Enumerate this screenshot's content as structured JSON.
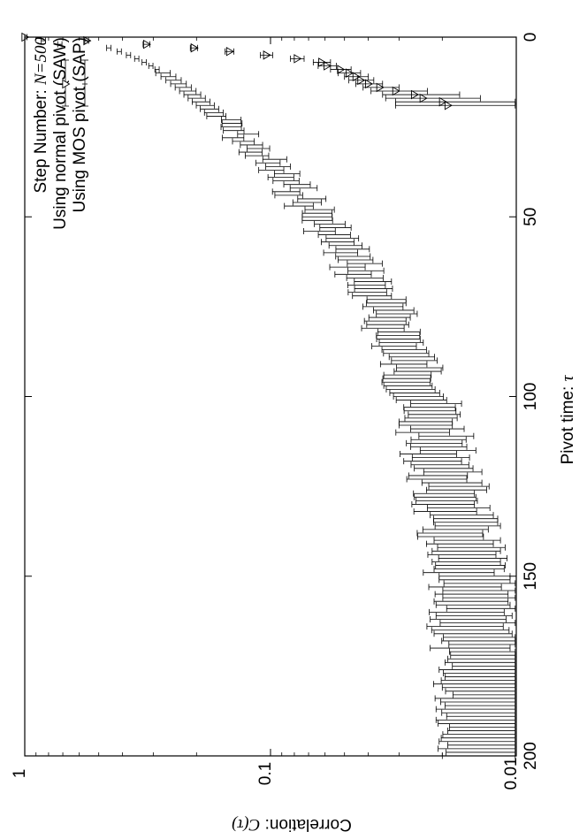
{
  "chart_data": {
    "type": "scatter",
    "orientation": "rotated-90-clockwise",
    "xlabel": "Pivot time: ",
    "xlabel_symbol": "τ",
    "ylabel": "Correlation: ",
    "ylabel_symbol": "C(τ)",
    "xlim": [
      0,
      200
    ],
    "ylim": [
      0.01,
      1
    ],
    "yscale": "log",
    "x_ticks": [
      0,
      50,
      100,
      150,
      200
    ],
    "y_ticks": [
      1,
      0.1,
      0.01
    ],
    "x_tick_labels": [
      "0",
      "50",
      "100",
      "150",
      "200"
    ],
    "y_tick_labels": [
      "1",
      "0.1",
      "0.01"
    ],
    "grid": false,
    "legend_position": "top-right",
    "legend_title_prefix": "Step Number: ",
    "legend_title_math": "N=500",
    "series": [
      {
        "name": "Using normal pivot (SAW)",
        "marker": "triangle",
        "x": [
          0,
          1,
          2,
          3,
          4,
          5,
          6,
          7,
          8,
          9,
          10,
          11,
          12,
          13,
          14,
          15,
          16,
          17,
          18,
          19
        ],
        "y": [
          1.0,
          0.56,
          0.32,
          0.205,
          0.147,
          0.104,
          0.078,
          0.062,
          0.059,
          0.052,
          0.048,
          0.045,
          0.043,
          0.04,
          0.036,
          0.031,
          0.026,
          0.024,
          0.02,
          0.019
        ],
        "err": [
          0.0,
          0.01,
          0.01,
          0.007,
          0.006,
          0.006,
          0.005,
          0.005,
          0.005,
          0.005,
          0.005,
          0.005,
          0.005,
          0.005,
          0.006,
          0.008,
          0.009,
          0.01,
          0.011,
          0.012
        ]
      },
      {
        "name": "Using MOS pivot (SAP)",
        "marker": "none",
        "x_start": 0,
        "x_step": 1,
        "y_formula_note": "",
        "x": [],
        "y": [],
        "err": []
      }
    ]
  }
}
